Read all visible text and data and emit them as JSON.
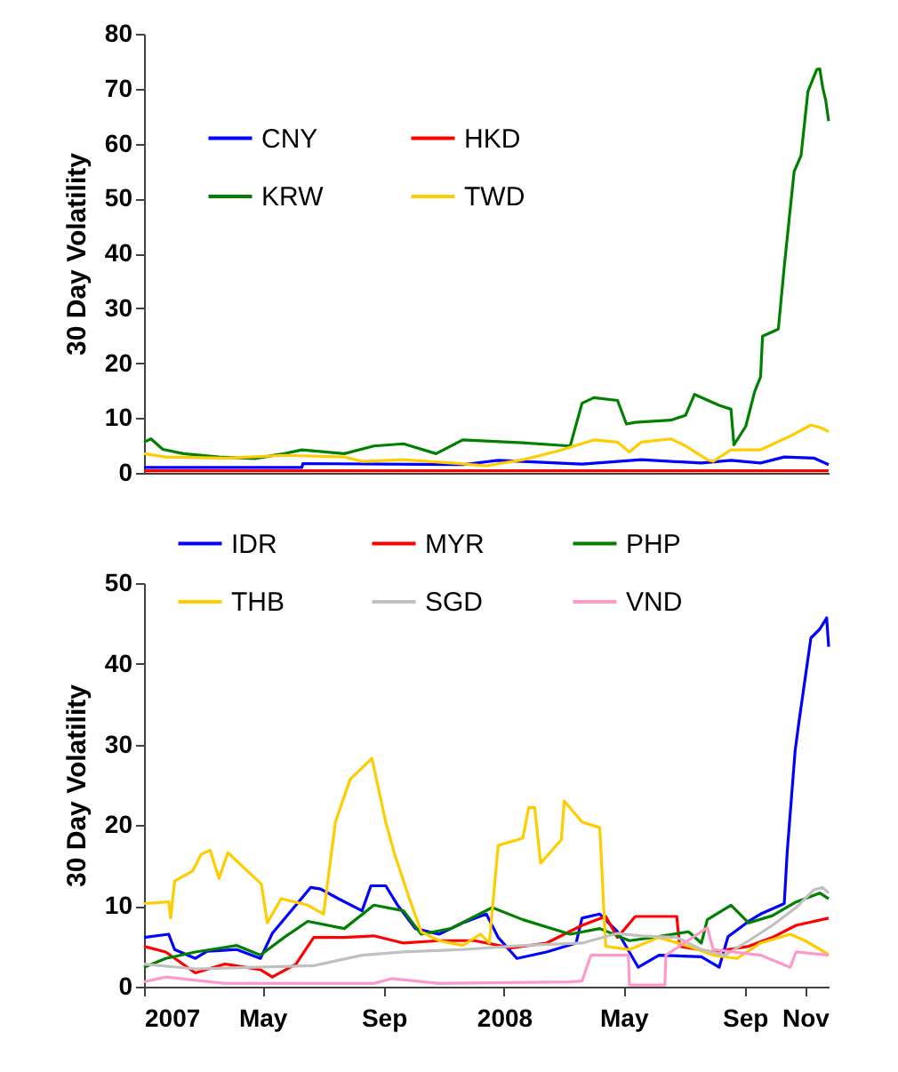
{
  "chart_data": [
    {
      "type": "line",
      "ylabel": "30 Day Volatility",
      "xlim": [
        "2007-01-01",
        "2008-11-25"
      ],
      "ylim": [
        0,
        80
      ],
      "yticks": [
        0,
        10,
        20,
        30,
        40,
        50,
        60,
        70,
        80
      ],
      "tick_labels": "y",
      "grid": false,
      "legend": "top left",
      "marker": "none",
      "line_style": "solid",
      "series": [
        {
          "name": "CNY",
          "color": "#0000ff",
          "x": [
            "2007-01-01",
            "2007-06-10",
            "2007-06-11",
            "2007-11-20",
            "2007-12-26",
            "2008-03-20",
            "2008-05-19",
            "2008-07-19",
            "2008-08-18",
            "2008-09-17",
            "2008-10-11",
            "2008-11-10",
            "2008-11-25"
          ],
          "values": [
            1.0,
            1.0,
            1.7,
            1.5,
            2.3,
            1.6,
            2.4,
            1.8,
            2.3,
            1.8,
            2.9,
            2.7,
            1.5
          ]
        },
        {
          "name": "HKD",
          "color": "#ff0000",
          "x": [
            "2007-01-01",
            "2008-11-25"
          ],
          "values": [
            0.4,
            0.4
          ]
        },
        {
          "name": "KRW",
          "color": "#008000",
          "x": [
            "2007-01-01",
            "2007-01-08",
            "2007-01-20",
            "2007-02-10",
            "2007-03-18",
            "2007-04-23",
            "2007-05-23",
            "2007-06-10",
            "2007-07-23",
            "2007-08-22",
            "2007-09-21",
            "2007-10-24",
            "2007-11-20",
            "2008-01-20",
            "2008-03-08",
            "2008-03-20",
            "2008-04-01",
            "2008-04-25",
            "2008-05-04",
            "2008-05-13",
            "2008-06-18",
            "2008-07-03",
            "2008-07-12",
            "2008-08-06",
            "2008-08-18",
            "2008-08-21",
            "2008-09-02",
            "2008-09-11",
            "2008-09-17",
            "2008-09-19",
            "2008-10-05",
            "2008-10-11",
            "2008-10-21",
            "2008-10-28",
            "2008-11-04",
            "2008-11-13",
            "2008-11-16",
            "2008-11-19",
            "2008-11-22",
            "2008-11-25"
          ],
          "values": [
            5.6,
            6.2,
            4.3,
            3.5,
            2.9,
            2.6,
            3.5,
            4.2,
            3.5,
            4.9,
            5.3,
            3.5,
            6.0,
            5.5,
            4.9,
            12.7,
            13.7,
            13.2,
            8.9,
            9.2,
            9.6,
            10.5,
            14.3,
            12.3,
            11.6,
            5.1,
            8.5,
            14.8,
            17.5,
            24.9,
            26.2,
            37.6,
            54.9,
            57.8,
            69.5,
            73.5,
            73.6,
            70.2,
            67.9,
            64.1
          ]
        },
        {
          "name": "TWD",
          "color": "#ffcc00",
          "x": [
            "2007-01-01",
            "2007-01-23",
            "2007-03-24",
            "2007-05-23",
            "2007-07-23",
            "2007-08-10",
            "2007-09-21",
            "2007-11-08",
            "2007-12-14",
            "2008-01-20",
            "2008-02-25",
            "2008-04-01",
            "2008-04-25",
            "2008-05-07",
            "2008-05-19",
            "2008-06-18",
            "2008-07-03",
            "2008-07-25",
            "2008-07-31",
            "2008-08-18",
            "2008-09-17",
            "2008-10-17",
            "2008-11-07",
            "2008-11-16",
            "2008-11-25"
          ],
          "values": [
            3.5,
            2.9,
            2.7,
            3.2,
            2.9,
            2.1,
            2.4,
            1.8,
            1.3,
            2.4,
            4.0,
            6.0,
            5.6,
            3.8,
            5.6,
            6.2,
            4.9,
            2.4,
            2.1,
            4.2,
            4.2,
            6.7,
            8.7,
            8.3,
            7.5
          ]
        }
      ]
    },
    {
      "type": "line",
      "ylabel": "30 Day Volatility",
      "xlim": [
        "2007-01-01",
        "2008-11-25"
      ],
      "ylim": [
        0,
        50
      ],
      "yticks": [
        0,
        10,
        20,
        30,
        40,
        50
      ],
      "xticks": [
        {
          "value": "2007-01-01",
          "label": "2007"
        },
        {
          "value": "2007-05-01",
          "label": "May"
        },
        {
          "value": "2007-09-01",
          "label": "Sep"
        },
        {
          "value": "2008-01-01",
          "label": "2008"
        },
        {
          "value": "2008-05-01",
          "label": "May"
        },
        {
          "value": "2008-09-01",
          "label": "Sep"
        },
        {
          "value": "2008-11-01",
          "label": "Nov"
        }
      ],
      "grid": false,
      "legend": "top",
      "marker": "none",
      "line_style": "solid",
      "series": [
        {
          "name": "IDR",
          "color": "#0000ff",
          "x": [
            "2007-01-01",
            "2007-01-26",
            "2007-02-01",
            "2007-02-22",
            "2007-03-06",
            "2007-04-05",
            "2007-04-29",
            "2007-05-11",
            "2007-06-04",
            "2007-06-19",
            "2007-06-29",
            "2007-07-17",
            "2007-08-10",
            "2007-08-19",
            "2007-09-03",
            "2007-09-15",
            "2007-10-03",
            "2007-10-27",
            "2007-11-20",
            "2007-12-14",
            "2007-12-26",
            "2008-01-14",
            "2008-02-13",
            "2008-03-14",
            "2008-03-20",
            "2008-04-07",
            "2008-04-25",
            "2008-05-16",
            "2008-06-06",
            "2008-07-19",
            "2008-08-06",
            "2008-08-15",
            "2008-09-05",
            "2008-09-17",
            "2008-10-11",
            "2008-10-14",
            "2008-10-22",
            "2008-10-26",
            "2008-11-07",
            "2008-11-16",
            "2008-11-23",
            "2008-11-25"
          ],
          "values": [
            6.1,
            6.5,
            4.6,
            3.5,
            4.4,
            4.6,
            3.5,
            6.6,
            10.1,
            12.3,
            12.1,
            10.9,
            9.4,
            12.5,
            12.5,
            10.1,
            7.2,
            6.5,
            7.9,
            9.0,
            6.1,
            3.5,
            4.3,
            5.4,
            8.5,
            9.0,
            6.8,
            2.4,
            3.9,
            3.7,
            2.4,
            6.2,
            8.1,
            9.0,
            10.3,
            16.7,
            29.2,
            32.9,
            43.2,
            44.3,
            45.7,
            42.1
          ]
        },
        {
          "name": "MYR",
          "color": "#ff0000",
          "x": [
            "2007-01-01",
            "2007-01-23",
            "2007-02-22",
            "2007-03-24",
            "2007-04-29",
            "2007-05-11",
            "2007-06-04",
            "2007-06-22",
            "2007-07-23",
            "2007-08-22",
            "2007-09-21",
            "2007-10-27",
            "2007-12-02",
            "2008-01-08",
            "2008-02-13",
            "2008-03-20",
            "2008-04-13",
            "2008-04-25",
            "2008-05-13",
            "2008-06-24",
            "2008-06-27",
            "2008-07-31",
            "2008-09-05",
            "2008-09-29",
            "2008-10-23",
            "2008-11-25"
          ],
          "values": [
            5.0,
            4.3,
            1.7,
            2.8,
            2.1,
            1.2,
            2.8,
            6.1,
            6.1,
            6.3,
            5.4,
            5.7,
            5.7,
            4.8,
            5.4,
            7.6,
            8.7,
            6.1,
            8.7,
            8.7,
            5.0,
            4.3,
            5.0,
            6.1,
            7.6,
            8.5
          ]
        },
        {
          "name": "PHP",
          "color": "#008000",
          "x": [
            "2007-01-01",
            "2007-01-23",
            "2007-02-22",
            "2007-04-05",
            "2007-04-29",
            "2007-05-23",
            "2007-06-16",
            "2007-07-23",
            "2007-08-22",
            "2007-09-21",
            "2007-10-09",
            "2007-11-08",
            "2007-12-20",
            "2008-01-20",
            "2008-03-08",
            "2008-04-07",
            "2008-05-07",
            "2008-05-31",
            "2008-07-06",
            "2008-07-19",
            "2008-07-25",
            "2008-08-18",
            "2008-09-05",
            "2008-09-29",
            "2008-10-23",
            "2008-11-16",
            "2008-11-25"
          ],
          "values": [
            2.4,
            3.5,
            4.3,
            5.1,
            3.9,
            6.1,
            8.1,
            7.2,
            10.1,
            9.4,
            6.5,
            7.2,
            9.8,
            8.3,
            6.5,
            7.2,
            5.7,
            6.1,
            6.8,
            5.4,
            8.3,
            10.1,
            7.9,
            8.8,
            10.5,
            11.6,
            10.9
          ]
        },
        {
          "name": "THB",
          "color": "#ffcc00",
          "x": [
            "2007-01-01",
            "2007-01-26",
            "2007-01-28",
            "2007-02-01",
            "2007-02-19",
            "2007-02-28",
            "2007-03-09",
            "2007-03-18",
            "2007-03-27",
            "2007-04-17",
            "2007-04-30",
            "2007-05-06",
            "2007-05-20",
            "2007-06-16",
            "2007-07-02",
            "2007-07-14",
            "2007-07-29",
            "2007-08-20",
            "2007-09-03",
            "2007-09-12",
            "2007-09-27",
            "2007-10-09",
            "2007-10-27",
            "2007-11-20",
            "2007-12-08",
            "2007-12-17",
            "2007-12-26",
            "2008-01-20",
            "2008-01-26",
            "2008-02-01",
            "2008-02-07",
            "2008-02-28",
            "2008-03-02",
            "2008-03-20",
            "2008-04-07",
            "2008-04-13",
            "2008-05-07",
            "2008-06-06",
            "2008-07-06",
            "2008-07-31",
            "2008-08-24",
            "2008-09-17",
            "2008-10-17",
            "2008-11-01",
            "2008-11-25"
          ],
          "values": [
            10.3,
            10.5,
            8.5,
            13.1,
            14.3,
            16.4,
            16.9,
            13.4,
            16.6,
            14.2,
            12.7,
            7.9,
            10.9,
            10.1,
            9.0,
            20.4,
            25.7,
            28.3,
            20.4,
            16.4,
            10.9,
            6.8,
            5.7,
            5.1,
            6.5,
            5.4,
            17.5,
            18.4,
            22.2,
            22.2,
            15.3,
            18.2,
            23.0,
            20.4,
            19.7,
            5.0,
            4.6,
            6.1,
            5.0,
            3.9,
            3.5,
            5.4,
            6.5,
            5.7,
            4.0
          ]
        },
        {
          "name": "SGD",
          "color": "#c0c0c0",
          "x": [
            "2007-01-01",
            "2007-02-22",
            "2007-04-23",
            "2007-06-22",
            "2007-08-10",
            "2007-09-21",
            "2007-11-20",
            "2008-01-20",
            "2008-03-20",
            "2008-04-25",
            "2008-05-19",
            "2008-06-24",
            "2008-07-19",
            "2008-08-12",
            "2008-09-05",
            "2008-09-29",
            "2008-10-23",
            "2008-11-10",
            "2008-11-19",
            "2008-11-25"
          ],
          "values": [
            2.8,
            2.2,
            2.4,
            2.6,
            3.9,
            4.3,
            4.6,
            5.1,
            5.4,
            6.6,
            6.3,
            6.1,
            4.6,
            3.9,
            5.7,
            7.6,
            9.8,
            12.0,
            12.3,
            11.6
          ]
        },
        {
          "name": "VND",
          "color": "#ff99cc",
          "x": [
            "2007-01-01",
            "2007-01-23",
            "2007-03-24",
            "2007-08-22",
            "2007-09-09",
            "2007-10-27",
            "2008-03-08",
            "2008-03-20",
            "2008-03-29",
            "2008-05-06",
            "2008-05-07",
            "2008-06-12",
            "2008-06-13",
            "2008-07-25",
            "2008-07-31",
            "2008-09-17",
            "2008-10-17",
            "2008-10-23",
            "2008-11-25"
          ],
          "values": [
            0.6,
            1.2,
            0.4,
            0.4,
            1.0,
            0.4,
            0.6,
            0.7,
            3.9,
            3.9,
            0.2,
            0.2,
            3.9,
            7.3,
            4.6,
            3.9,
            2.4,
            4.3,
            3.9
          ]
        }
      ]
    }
  ]
}
